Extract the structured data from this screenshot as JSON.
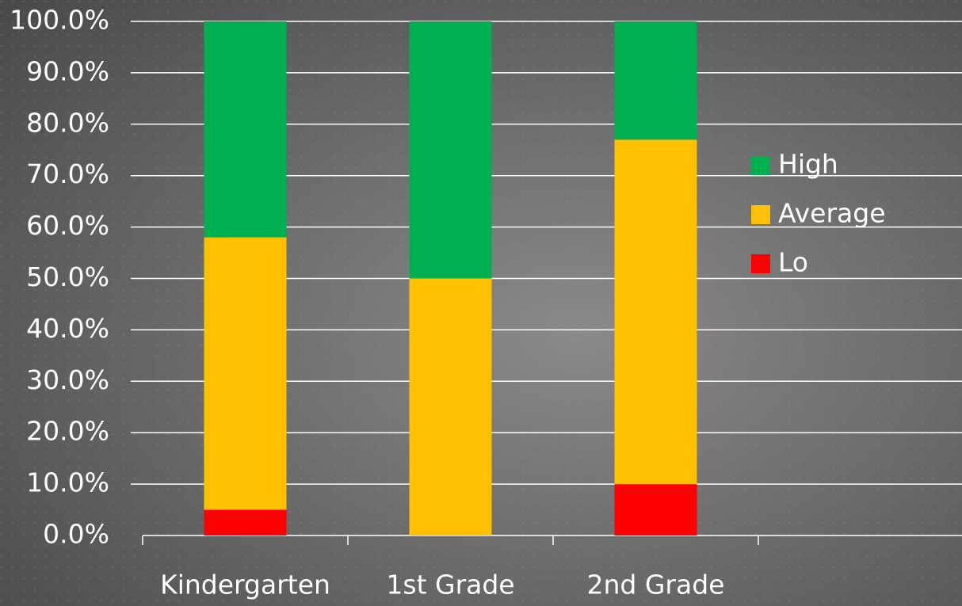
{
  "chart_data": {
    "type": "stacked_bar",
    "categories": [
      "Kindergarten",
      "1st Grade",
      "2nd Grade",
      null
    ],
    "series": [
      {
        "name": "High",
        "color": "#00b050",
        "values": [
          42,
          50,
          23,
          null
        ]
      },
      {
        "name": "Average",
        "color": "#ffc000",
        "values": [
          53,
          50,
          67,
          null
        ]
      },
      {
        "name": "Lo",
        "color": "#ff0000",
        "values": [
          5,
          0,
          10,
          null
        ]
      }
    ],
    "ylim": [
      0,
      100
    ],
    "yticks": [
      {
        "value": 0,
        "label": "0.0%"
      },
      {
        "value": 10,
        "label": "10.0%"
      },
      {
        "value": 20,
        "label": "20.0%"
      },
      {
        "value": 30,
        "label": "30.0%"
      },
      {
        "value": 40,
        "label": "40.0%"
      },
      {
        "value": 50,
        "label": "50.0%"
      },
      {
        "value": 60,
        "label": "60.0%"
      },
      {
        "value": 70,
        "label": "70.0%"
      },
      {
        "value": 80,
        "label": "80.0%"
      },
      {
        "value": 90,
        "label": "90.0%"
      },
      {
        "value": 100,
        "label": "100.0%"
      }
    ],
    "grid": true,
    "legend": "right"
  }
}
